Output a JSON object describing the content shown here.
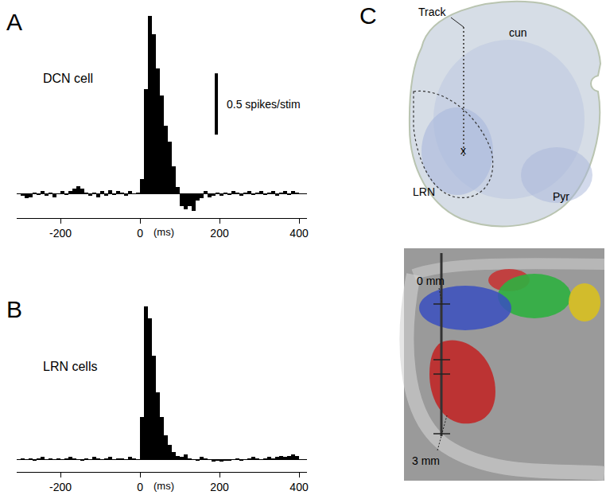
{
  "chart_data": [
    {
      "type": "histogram",
      "title": "DCN cell",
      "annotations": [
        "A"
      ],
      "xlabel": "(ms)",
      "bins": [
        -300,
        -290,
        -280,
        -270,
        -260,
        -250,
        -240,
        -230,
        -220,
        -210,
        -200,
        -190,
        -180,
        -170,
        -160,
        -150,
        -140,
        -130,
        -120,
        -110,
        -100,
        -90,
        -80,
        -70,
        -60,
        -50,
        -40,
        -30,
        -20,
        -10,
        0,
        10,
        20,
        30,
        40,
        50,
        60,
        70,
        80,
        90,
        100,
        110,
        120,
        130,
        140,
        150,
        160,
        170,
        180,
        190,
        200,
        210,
        220,
        230,
        240,
        250,
        260,
        270,
        280,
        290,
        300,
        310,
        320,
        330,
        340,
        350,
        360,
        370,
        380,
        390,
        400
      ],
      "values": [
        -0.02,
        -0.04,
        -0.03,
        0.01,
        -0.01,
        0.02,
        -0.02,
        0.01,
        -0.03,
        0.0,
        0.02,
        -0.01,
        0.02,
        0.04,
        0.06,
        0.04,
        0.01,
        -0.02,
        0.01,
        -0.03,
        0.02,
        -0.02,
        0.03,
        -0.01,
        0.02,
        0.01,
        -0.02,
        0.02,
        0.0,
        0.01,
        0.12,
        0.85,
        1.45,
        1.3,
        1.02,
        0.8,
        0.55,
        0.42,
        0.22,
        0.05,
        -0.1,
        -0.13,
        -0.1,
        -0.14,
        -0.06,
        -0.04,
        0.02,
        -0.03,
        -0.02,
        0.01,
        -0.02,
        0.01,
        -0.01,
        0.02,
        0.01,
        -0.02,
        0.01,
        0.02,
        -0.01,
        0.01,
        0.02,
        -0.01,
        0.01,
        0.02,
        -0.02,
        0.01,
        0.02,
        -0.01,
        0.02,
        0.01
      ],
      "color": "#000000",
      "xlim": [
        -310,
        420
      ],
      "xticks": [
        -200,
        0,
        200,
        400
      ],
      "ylim": [
        -0.2,
        1.5
      ],
      "scale_bar": {
        "value": 0.5,
        "label": "0.5 spikes/stim"
      },
      "tick_labels": "x",
      "grid": false
    },
    {
      "type": "histogram",
      "title": "LRN cells",
      "annotations": [
        "B"
      ],
      "xlabel": "(ms)",
      "bins": [
        -300,
        -290,
        -280,
        -270,
        -260,
        -250,
        -240,
        -230,
        -220,
        -210,
        -200,
        -190,
        -180,
        -170,
        -160,
        -150,
        -140,
        -130,
        -120,
        -110,
        -100,
        -90,
        -80,
        -70,
        -60,
        -50,
        -40,
        -30,
        -20,
        -10,
        0,
        10,
        20,
        30,
        40,
        50,
        60,
        70,
        80,
        90,
        100,
        110,
        120,
        130,
        140,
        150,
        160,
        170,
        180,
        190,
        200,
        210,
        220,
        230,
        240,
        250,
        260,
        270,
        280,
        290,
        300,
        310,
        320,
        330,
        340,
        350,
        360,
        370,
        380,
        390,
        400
      ],
      "values": [
        0.01,
        0.0,
        0.01,
        -0.01,
        0.01,
        0.02,
        0.0,
        0.01,
        0.0,
        0.01,
        0.0,
        0.01,
        0.02,
        0.01,
        0.0,
        -0.01,
        0.01,
        0.0,
        0.02,
        0.01,
        0.0,
        0.01,
        0.02,
        0.0,
        0.01,
        0.01,
        0.0,
        0.02,
        0.01,
        0.0,
        0.35,
        1.25,
        1.15,
        0.85,
        0.55,
        0.35,
        0.2,
        0.12,
        0.06,
        0.03,
        0.02,
        0.04,
        0.01,
        0.0,
        -0.01,
        0.02,
        0.01,
        0.0,
        -0.02,
        -0.01,
        -0.02,
        -0.01,
        -0.01,
        0.0,
        0.01,
        -0.01,
        0.0,
        0.01,
        0.02,
        0.01,
        0.0,
        0.01,
        0.02,
        0.01,
        0.02,
        0.03,
        0.02,
        0.03,
        0.04,
        0.03
      ],
      "color": "#000000",
      "xlim": [
        -310,
        420
      ],
      "xticks": [
        -200,
        0,
        200,
        400
      ],
      "ylim": [
        -0.1,
        1.4
      ],
      "tick_labels": "x",
      "grid": false
    }
  ],
  "panels": {
    "C": {
      "label": "C",
      "histology": {
        "track": "Track",
        "cun": "cun",
        "lrn": "LRN",
        "site": "x",
        "pyr": "Pyr"
      },
      "reconstruction": {
        "top": "0 mm",
        "bottom": "3 mm"
      }
    }
  }
}
